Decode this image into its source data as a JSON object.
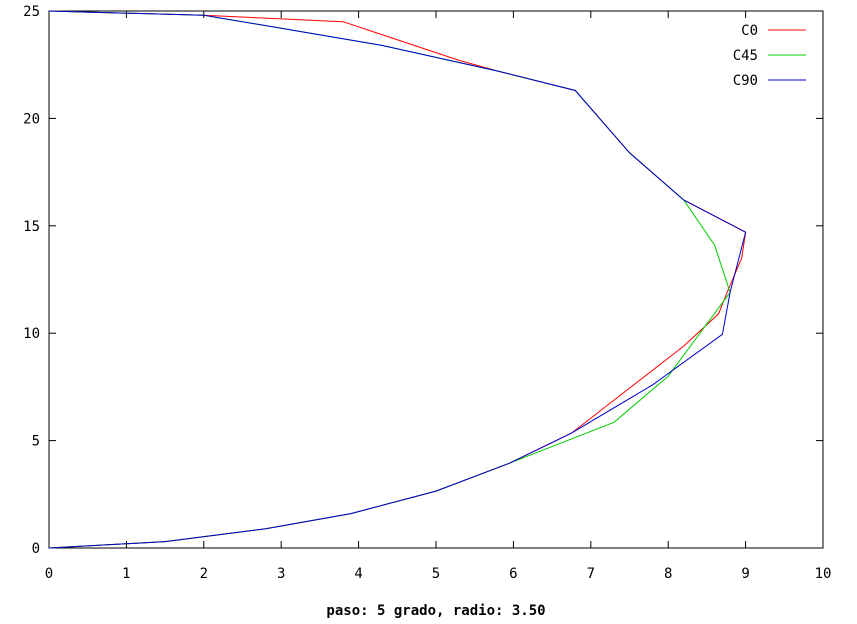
{
  "chart_data": {
    "type": "line",
    "title": "",
    "xlabel": "paso: 5 grado, radio: 3.50",
    "ylabel": "",
    "xlim": [
      0,
      10
    ],
    "ylim": [
      0,
      25
    ],
    "xticks": [
      "0",
      "1",
      "2",
      "3",
      "4",
      "5",
      "6",
      "7",
      "8",
      "9",
      "10"
    ],
    "yticks": [
      "0",
      "5",
      "10",
      "15",
      "20",
      "25"
    ],
    "grid": false,
    "legend_position": "top-right",
    "series": [
      {
        "name": "C0",
        "color": "#ff0000",
        "points": [
          [
            0.0,
            0.0
          ],
          [
            1.5,
            0.3
          ],
          [
            2.8,
            0.9
          ],
          [
            3.9,
            1.6
          ],
          [
            5.0,
            2.65
          ],
          [
            5.95,
            3.95
          ],
          [
            6.75,
            5.35
          ],
          [
            8.2,
            9.4
          ],
          [
            8.65,
            10.9
          ],
          [
            8.75,
            11.8
          ],
          [
            8.95,
            13.5
          ],
          [
            9.0,
            14.7
          ],
          [
            8.2,
            16.2
          ],
          [
            7.5,
            18.4
          ],
          [
            6.8,
            21.3
          ],
          [
            5.8,
            22.2
          ],
          [
            5.3,
            22.7
          ],
          [
            3.8,
            24.5
          ],
          [
            2.0,
            24.8
          ],
          [
            0.5,
            24.95
          ],
          [
            0.0,
            25.0
          ]
        ]
      },
      {
        "name": "C45",
        "color": "#00cc00",
        "points": [
          [
            0.0,
            0.0
          ],
          [
            1.5,
            0.3
          ],
          [
            2.8,
            0.9
          ],
          [
            3.9,
            1.6
          ],
          [
            5.0,
            2.65
          ],
          [
            5.95,
            3.95
          ],
          [
            7.3,
            5.85
          ],
          [
            8.0,
            8.0
          ],
          [
            8.8,
            11.9
          ],
          [
            8.6,
            14.1
          ],
          [
            8.2,
            16.2
          ],
          [
            7.5,
            18.4
          ],
          [
            6.8,
            21.3
          ],
          [
            5.8,
            22.2
          ],
          [
            4.3,
            23.4
          ],
          [
            3.0,
            24.2
          ],
          [
            2.0,
            24.8
          ],
          [
            0.5,
            24.95
          ],
          [
            0.0,
            25.0
          ]
        ]
      },
      {
        "name": "C90",
        "color": "#0000cc",
        "points": [
          [
            0.0,
            0.0
          ],
          [
            1.5,
            0.3
          ],
          [
            2.8,
            0.9
          ],
          [
            3.9,
            1.6
          ],
          [
            5.0,
            2.65
          ],
          [
            5.95,
            3.95
          ],
          [
            6.75,
            5.35
          ],
          [
            7.8,
            7.6
          ],
          [
            8.7,
            9.95
          ],
          [
            8.8,
            11.9
          ],
          [
            9.0,
            14.7
          ],
          [
            8.2,
            16.2
          ],
          [
            7.5,
            18.4
          ],
          [
            6.8,
            21.3
          ],
          [
            5.8,
            22.2
          ],
          [
            4.3,
            23.4
          ],
          [
            3.0,
            24.2
          ],
          [
            2.0,
            24.8
          ],
          [
            0.5,
            24.95
          ],
          [
            0.0,
            25.0
          ]
        ]
      }
    ]
  }
}
